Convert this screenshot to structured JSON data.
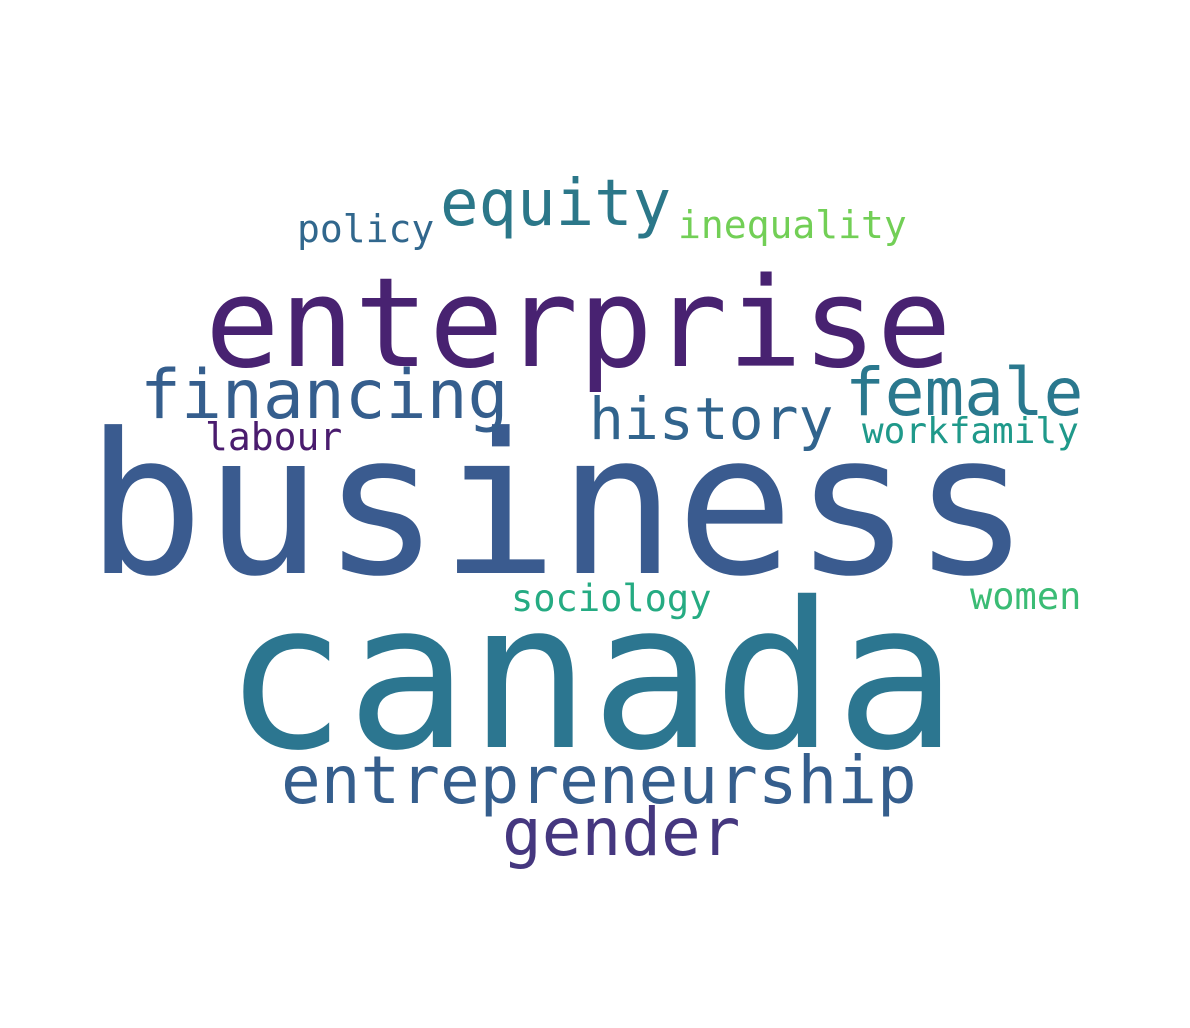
{
  "words": [
    {
      "id": "business",
      "text": "business",
      "color": "#3a5b8f"
    },
    {
      "id": "canada",
      "text": "canada",
      "color": "#2c7690"
    },
    {
      "id": "enterprise",
      "text": "enterprise",
      "color": "#482271"
    },
    {
      "id": "entrepreneurship",
      "text": "entrepreneurship",
      "color": "#355e8d"
    },
    {
      "id": "financing",
      "text": "financing",
      "color": "#355e8d"
    },
    {
      "id": "equity",
      "text": "equity",
      "color": "#2b7789"
    },
    {
      "id": "female",
      "text": "female",
      "color": "#2a788e"
    },
    {
      "id": "history",
      "text": "history",
      "color": "#31648d"
    },
    {
      "id": "gender",
      "text": "gender",
      "color": "#45377f"
    },
    {
      "id": "policy",
      "text": "policy",
      "color": "#31678d"
    },
    {
      "id": "inequality",
      "text": "inequality",
      "color": "#72cf56"
    },
    {
      "id": "labour",
      "text": "labour",
      "color": "#4a1c6e"
    },
    {
      "id": "workfamily",
      "text": "workfamily",
      "color": "#1f998a"
    },
    {
      "id": "sociology",
      "text": "sociology",
      "color": "#25ab82"
    },
    {
      "id": "women",
      "text": "women",
      "color": "#3bbc75"
    }
  ]
}
